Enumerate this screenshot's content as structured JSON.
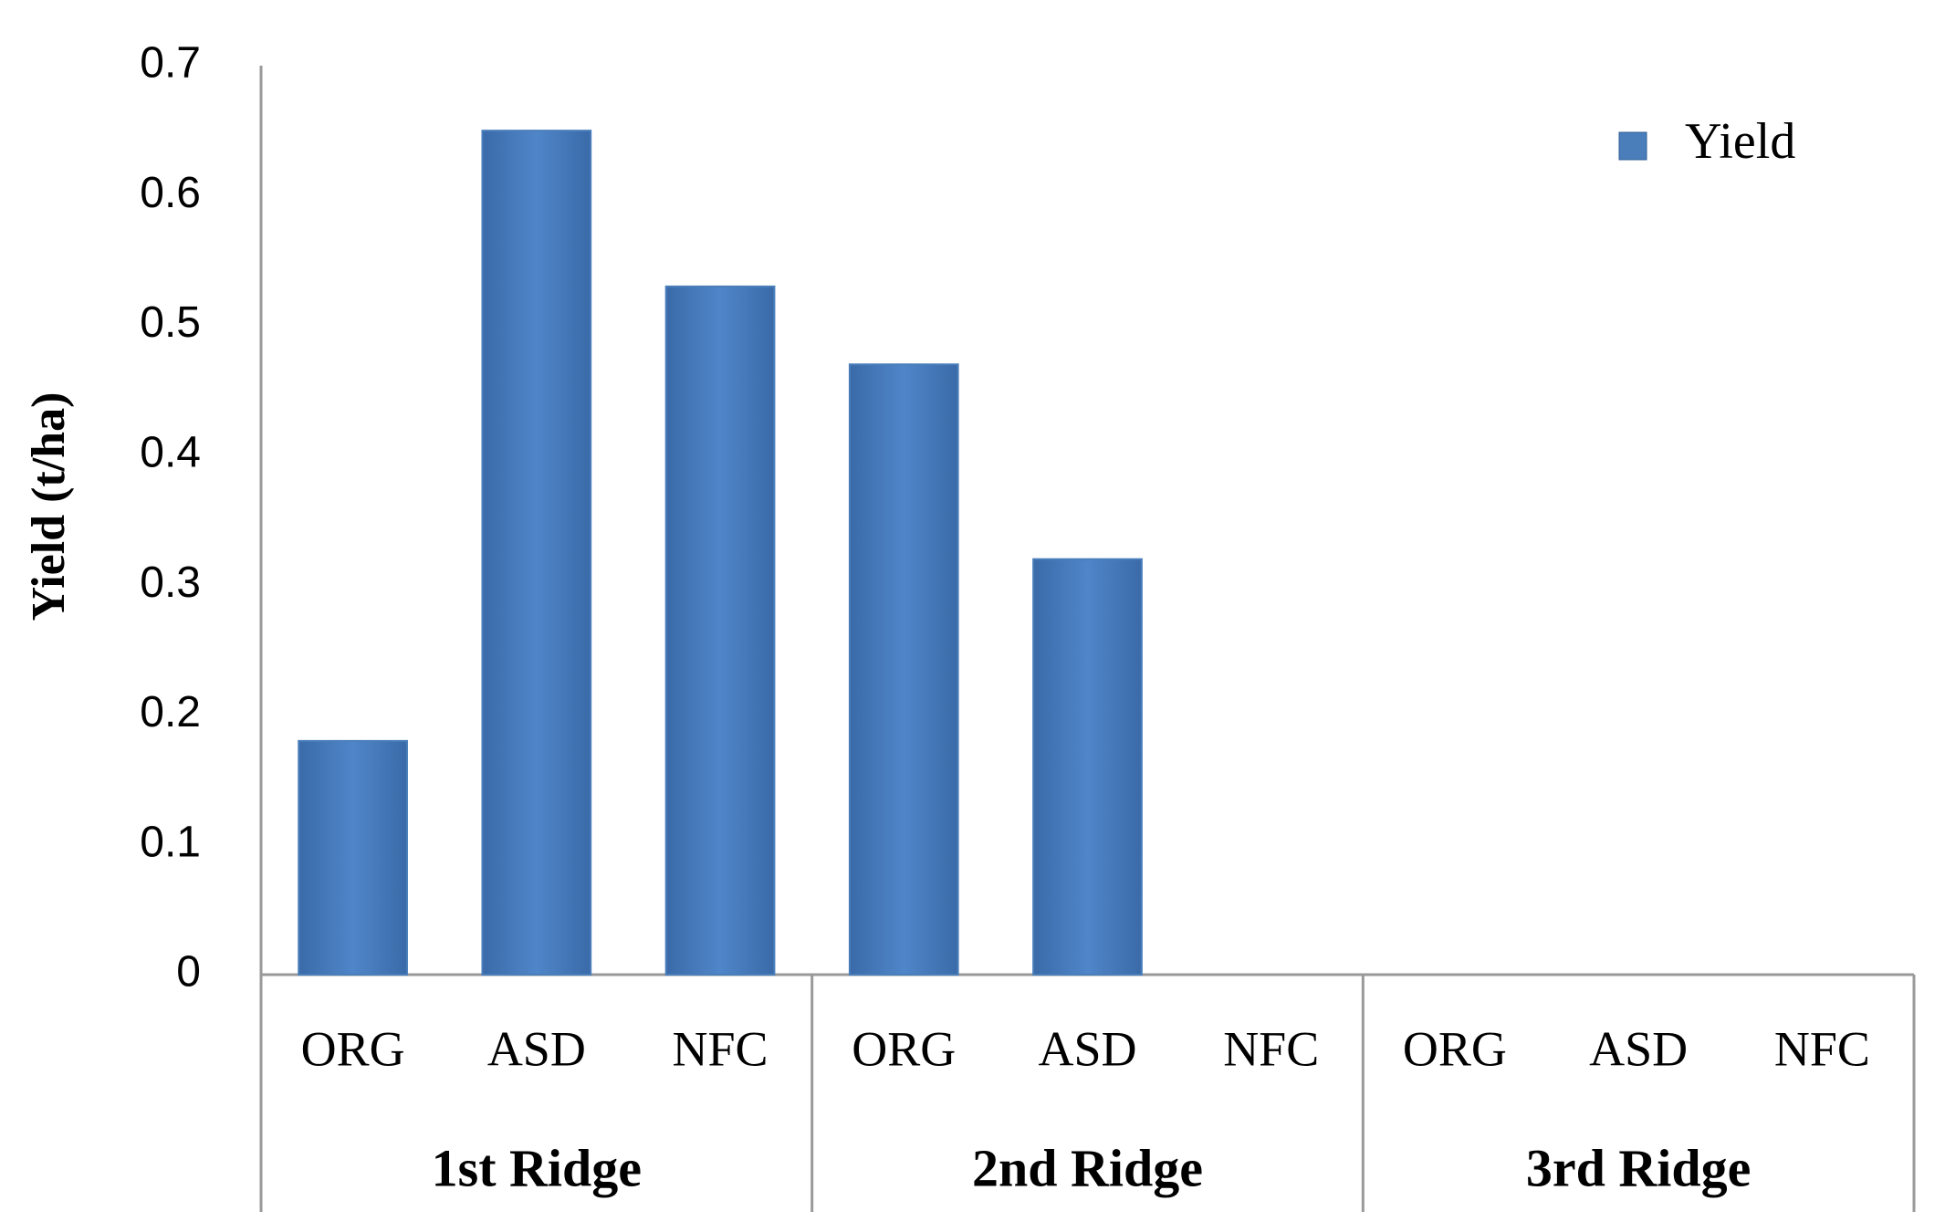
{
  "chart_data": {
    "type": "bar",
    "y_axis_label": "Yield (t/ha)",
    "categories": [
      "ORG",
      "ASD",
      "NFC",
      "ORG",
      "ASD",
      "NFC",
      "ORG",
      "ASD",
      "NFC"
    ],
    "groups": [
      "1st Ridge",
      "2nd Ridge",
      "3rd Ridge"
    ],
    "series": [
      {
        "name": "Yield",
        "color": "#4a7ebb",
        "values": [
          0.18,
          0.65,
          0.53,
          0.47,
          0.32,
          0,
          0,
          0,
          0
        ]
      }
    ],
    "ylim": [
      0,
      0.7
    ],
    "yticks": [
      0,
      0.1,
      0.2,
      0.3,
      0.4,
      0.5,
      0.6,
      0.7
    ],
    "grid": false,
    "legend": "upper right"
  }
}
